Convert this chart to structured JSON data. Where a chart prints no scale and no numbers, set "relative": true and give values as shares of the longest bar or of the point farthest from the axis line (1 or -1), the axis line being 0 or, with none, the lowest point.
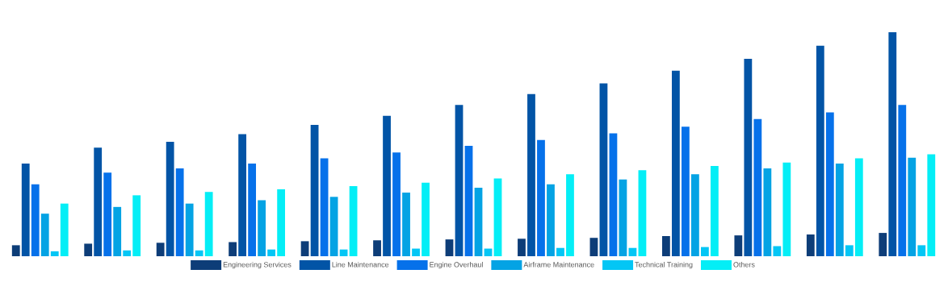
{
  "chart_data": {
    "type": "bar",
    "relative": true,
    "legend": "bottom",
    "categories": [
      null,
      null,
      null,
      null,
      null,
      null,
      null,
      null,
      null,
      null,
      null,
      null,
      null
    ],
    "series": [
      {
        "name": "Engineering Services",
        "color": "#0d3d78",
        "values": [
          0.049,
          0.056,
          0.06,
          0.063,
          0.067,
          0.071,
          0.075,
          0.078,
          0.082,
          0.09,
          0.093,
          0.097,
          0.104
        ]
      },
      {
        "name": "Line Maintenance",
        "color": "#0254a6",
        "values": [
          0.414,
          0.485,
          0.511,
          0.545,
          0.586,
          0.627,
          0.675,
          0.724,
          0.772,
          0.828,
          0.881,
          0.94,
          1
        ]
      },
      {
        "name": "Engine Overhaul",
        "color": "#0671ea",
        "values": [
          0.321,
          0.373,
          0.392,
          0.414,
          0.437,
          0.463,
          0.493,
          0.519,
          0.549,
          0.578,
          0.612,
          0.642,
          0.675
        ]
      },
      {
        "name": "Airframe Maintenance",
        "color": "#04a3e4",
        "values": [
          0.19,
          0.22,
          0.235,
          0.25,
          0.265,
          0.284,
          0.306,
          0.321,
          0.343,
          0.366,
          0.392,
          0.414,
          0.44
        ]
      },
      {
        "name": "Technical Training",
        "color": "#03c6f5",
        "values": [
          0.022,
          0.026,
          0.026,
          0.03,
          0.03,
          0.034,
          0.034,
          0.037,
          0.037,
          0.041,
          0.045,
          0.049,
          0.049
        ]
      },
      {
        "name": "Others",
        "color": "#04eef6",
        "values": [
          0.235,
          0.272,
          0.287,
          0.299,
          0.313,
          0.328,
          0.347,
          0.366,
          0.384,
          0.403,
          0.418,
          0.437,
          0.455
        ]
      }
    ]
  }
}
